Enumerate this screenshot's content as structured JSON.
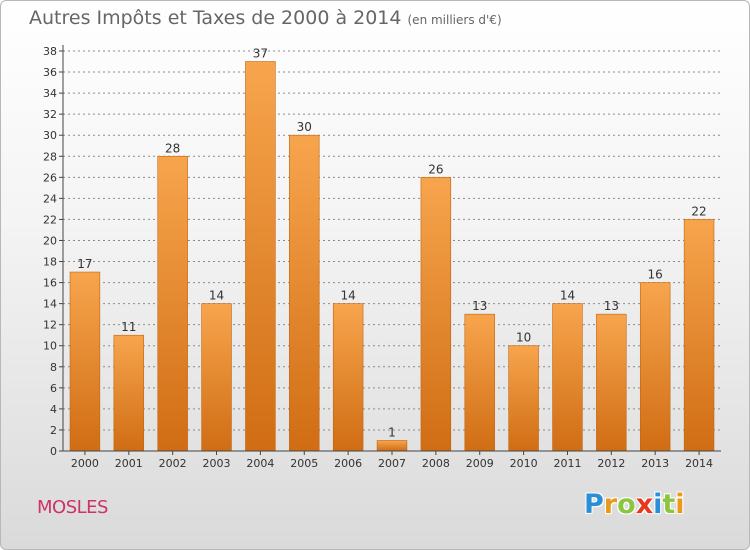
{
  "page": {
    "title": "Autres Impôts et Taxes de 2000 à 2014",
    "subtitle": "(en milliers d'€)",
    "place": "MOSLES",
    "logo": {
      "letters": [
        "P",
        "r",
        "o",
        "x",
        "i",
        "t",
        "i"
      ],
      "colors": [
        "#2a8fd6",
        "#e89a1c",
        "#8cc63f",
        "#e8371c",
        "#2a8fd6",
        "#8cc63f",
        "#e89a1c"
      ]
    }
  },
  "colors": {
    "bar_top": "#f7a54d",
    "bar_bottom": "#d06d14",
    "bar_edge": "#c26410",
    "axis": "#444444",
    "grid": "#8c8c8c",
    "text": "#333333"
  },
  "chart_data": {
    "type": "bar",
    "categories": [
      "2000",
      "2001",
      "2002",
      "2003",
      "2004",
      "2005",
      "2006",
      "2007",
      "2008",
      "2009",
      "2010",
      "2011",
      "2012",
      "2013",
      "2014"
    ],
    "values": [
      17,
      11,
      28,
      14,
      37,
      30,
      14,
      1,
      26,
      13,
      10,
      14,
      13,
      16,
      22
    ],
    "title": "Autres Impôts et Taxes de 2000 à 2014",
    "subtitle": "(en milliers d'€)",
    "ylim": [
      0,
      38
    ],
    "yticks": [
      0,
      2,
      4,
      6,
      8,
      10,
      12,
      14,
      16,
      18,
      20,
      22,
      24,
      26,
      28,
      30,
      32,
      34,
      36,
      38
    ],
    "grid": true,
    "data_labels": true
  }
}
